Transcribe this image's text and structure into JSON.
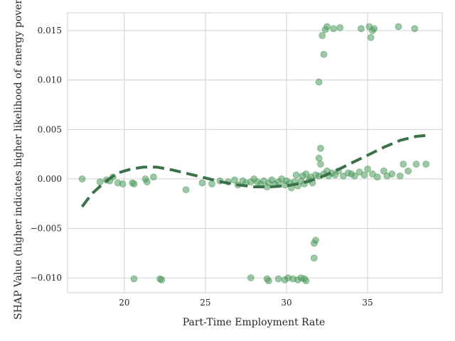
{
  "chart_data": {
    "type": "scatter",
    "title": "",
    "xlabel": "Part-Time Employment Rate",
    "ylabel": "SHAP Value (higher indicates higher likelihood of energy poverty)",
    "xlim": [
      16.5,
      39.6
    ],
    "ylim": [
      -0.0115,
      0.0168
    ],
    "xticks": [
      20,
      25,
      30,
      35
    ],
    "yticks": [
      -0.01,
      -0.005,
      0.0,
      0.005,
      0.01,
      0.015
    ],
    "xtick_labels": [
      "20",
      "25",
      "30",
      "35"
    ],
    "ytick_labels": [
      "−0.010",
      "−0.005",
      "0.000",
      "0.005",
      "0.010",
      "0.015"
    ],
    "grid": true,
    "point_color": "#4c9a5c",
    "trend_color": "#3b7148",
    "grid_color": "#d0d0d0",
    "series": [
      {
        "kind": "points",
        "points": [
          [
            17.4,
            0.0
          ],
          [
            18.5,
            -0.0003
          ],
          [
            18.9,
            -0.0001
          ],
          [
            19.1,
            -0.0002
          ],
          [
            19.3,
            0.0002
          ],
          [
            19.6,
            -0.0004
          ],
          [
            19.9,
            -0.0005
          ],
          [
            20.5,
            -0.0004
          ],
          [
            20.6,
            -0.0005
          ],
          [
            21.3,
            0.0
          ],
          [
            21.4,
            -0.0003
          ],
          [
            21.8,
            0.0002
          ],
          [
            23.8,
            -0.0011
          ],
          [
            24.8,
            -0.0004
          ],
          [
            25.4,
            -0.0005
          ],
          [
            25.9,
            -0.0002
          ],
          [
            26.4,
            -0.0003
          ],
          [
            26.8,
            -0.0001
          ],
          [
            27.0,
            -0.0006
          ],
          [
            27.3,
            -0.0002
          ],
          [
            27.5,
            -0.0004
          ],
          [
            27.8,
            -0.0003
          ],
          [
            28.0,
            0.0
          ],
          [
            28.2,
            -0.0003
          ],
          [
            28.4,
            -0.0005
          ],
          [
            28.6,
            -0.0002
          ],
          [
            28.8,
            -0.0008
          ],
          [
            28.9,
            -0.0004
          ],
          [
            29.1,
            -0.0001
          ],
          [
            29.3,
            -0.0005
          ],
          [
            29.5,
            -0.0003
          ],
          [
            29.7,
            0.0
          ],
          [
            29.9,
            -0.0006
          ],
          [
            30.0,
            -0.0002
          ],
          [
            30.2,
            -0.0004
          ],
          [
            30.3,
            -0.0009
          ],
          [
            30.5,
            -0.0003
          ],
          [
            30.6,
            0.0004
          ],
          [
            30.7,
            -0.0007
          ],
          [
            30.9,
            -0.0002
          ],
          [
            31.0,
            0.0003
          ],
          [
            31.1,
            -0.0005
          ],
          [
            31.2,
            0.0005
          ],
          [
            31.4,
            -0.0001
          ],
          [
            31.5,
            0.0002
          ],
          [
            31.6,
            -0.0004
          ],
          [
            31.8,
            0.0004
          ],
          [
            32.0,
            0.0003
          ],
          [
            32.1,
            0.0015
          ],
          [
            32.3,
            0.0005
          ],
          [
            32.5,
            0.0008
          ],
          [
            32.6,
            0.0003
          ],
          [
            32.8,
            0.0006
          ],
          [
            33.0,
            0.0004
          ],
          [
            33.2,
            0.0008
          ],
          [
            33.5,
            0.0003
          ],
          [
            33.8,
            0.0006
          ],
          [
            34.0,
            0.0005
          ],
          [
            34.2,
            0.0003
          ],
          [
            34.5,
            0.0007
          ],
          [
            34.8,
            0.0004
          ],
          [
            35.0,
            0.001
          ],
          [
            35.3,
            0.0005
          ],
          [
            35.6,
            0.0002
          ],
          [
            36.0,
            0.0008
          ],
          [
            36.2,
            0.0003
          ],
          [
            36.5,
            0.0005
          ],
          [
            37.0,
            0.0003
          ],
          [
            37.2,
            0.0015
          ],
          [
            37.5,
            0.0008
          ],
          [
            38.0,
            0.0015
          ],
          [
            38.6,
            0.0015
          ],
          [
            20.6,
            -0.0101
          ],
          [
            22.2,
            -0.0101
          ],
          [
            22.3,
            -0.0102
          ],
          [
            27.8,
            -0.01
          ],
          [
            28.8,
            -0.0101
          ],
          [
            28.9,
            -0.0103
          ],
          [
            29.5,
            -0.0101
          ],
          [
            29.9,
            -0.0102
          ],
          [
            30.1,
            -0.01
          ],
          [
            30.4,
            -0.0101
          ],
          [
            30.7,
            -0.0102
          ],
          [
            30.9,
            -0.01
          ],
          [
            31.1,
            -0.0101
          ],
          [
            31.2,
            -0.0103
          ],
          [
            31.7,
            -0.0065
          ],
          [
            31.7,
            -0.008
          ],
          [
            31.8,
            -0.0062
          ],
          [
            32.0,
            0.0021
          ],
          [
            32.1,
            0.0031
          ],
          [
            32.0,
            0.0098
          ],
          [
            32.3,
            0.0126
          ],
          [
            32.2,
            0.0145
          ],
          [
            32.4,
            0.0151
          ],
          [
            32.5,
            0.0154
          ],
          [
            32.9,
            0.0152
          ],
          [
            33.3,
            0.0153
          ],
          [
            34.6,
            0.0152
          ],
          [
            35.1,
            0.0154
          ],
          [
            35.2,
            0.0143
          ],
          [
            35.3,
            0.015
          ],
          [
            35.4,
            0.0152
          ],
          [
            36.9,
            0.0154
          ],
          [
            37.9,
            0.0152
          ]
        ]
      },
      {
        "kind": "trend",
        "points": [
          [
            17.4,
            -0.0028
          ],
          [
            18.0,
            -0.0015
          ],
          [
            18.8,
            -0.0003
          ],
          [
            19.6,
            0.0006
          ],
          [
            20.4,
            0.001
          ],
          [
            21.2,
            0.0012
          ],
          [
            22.0,
            0.0012
          ],
          [
            23.0,
            0.0009
          ],
          [
            24.0,
            0.0005
          ],
          [
            25.0,
            0.0001
          ],
          [
            26.0,
            -0.0003
          ],
          [
            27.0,
            -0.0006
          ],
          [
            28.0,
            -0.0008
          ],
          [
            29.0,
            -0.0008
          ],
          [
            30.0,
            -0.0007
          ],
          [
            31.0,
            -0.0004
          ],
          [
            32.0,
            0.0001
          ],
          [
            33.0,
            0.0008
          ],
          [
            34.0,
            0.0016
          ],
          [
            35.0,
            0.0024
          ],
          [
            36.0,
            0.0032
          ],
          [
            37.0,
            0.0039
          ],
          [
            38.0,
            0.0043
          ],
          [
            38.6,
            0.0044
          ]
        ]
      }
    ]
  }
}
